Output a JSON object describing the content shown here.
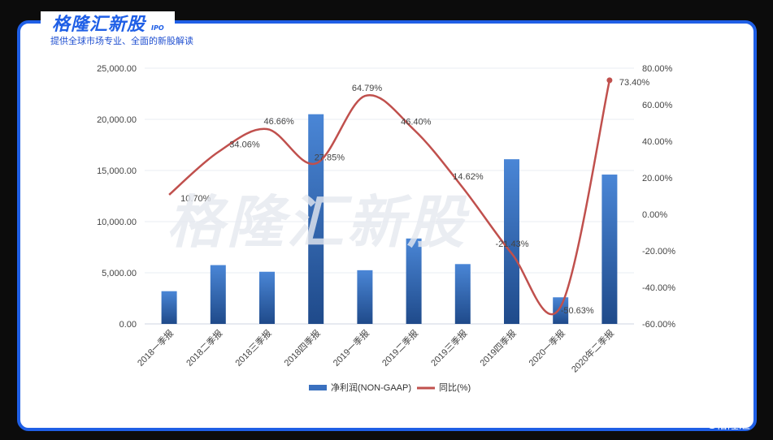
{
  "brand": {
    "title": "格隆汇新股",
    "ipo": "IPO",
    "subtitle": "提供全球市场专业、全面的新股解读",
    "watermark": "格隆汇新股",
    "corner_logo": "G格隆汇"
  },
  "colors": {
    "bar": "#3a70bf",
    "line": "#c0504d",
    "frame": "#1f5fe6"
  },
  "chart_data": {
    "type": "bar",
    "categories": [
      "2018一季报",
      "2018二季报",
      "2018三季报",
      "2018四季报",
      "2019一季报",
      "2019二季报",
      "2019三季报",
      "2019四季报",
      "2020一季报",
      "2020年二季报"
    ],
    "series": [
      {
        "name": "净利润(NON-GAAP)",
        "type": "bar",
        "axis": "left",
        "values": [
          3200,
          5750,
          5100,
          20500,
          5250,
          8350,
          5850,
          16100,
          2600,
          14600
        ]
      },
      {
        "name": "同比(%)",
        "type": "line",
        "axis": "right",
        "values": [
          10.7,
          34.06,
          46.66,
          27.85,
          64.79,
          46.4,
          14.62,
          -21.43,
          -50.63,
          73.4
        ],
        "labels": [
          "10.70%",
          "34.06%",
          "46.66%",
          "27.85%",
          "64.79%",
          "46.40%",
          "14.62%",
          "-21.43%",
          "-50.63%",
          "73.40%"
        ]
      }
    ],
    "left_axis": {
      "min": 0,
      "max": 25000,
      "ticks": [
        0,
        5000,
        10000,
        15000,
        20000,
        25000
      ],
      "tick_labels": [
        "0.00",
        "5,000.00",
        "10,000.00",
        "15,000.00",
        "20,000.00",
        "25,000.00"
      ]
    },
    "right_axis": {
      "min": -60,
      "max": 80,
      "ticks": [
        -60,
        -40,
        -20,
        0,
        20,
        40,
        60,
        80
      ],
      "tick_labels": [
        "-60.00%",
        "-40.00%",
        "-20.00%",
        "0.00%",
        "20.00%",
        "40.00%",
        "60.00%",
        "80.00%"
      ]
    },
    "grid": true,
    "legend": "bottom"
  }
}
